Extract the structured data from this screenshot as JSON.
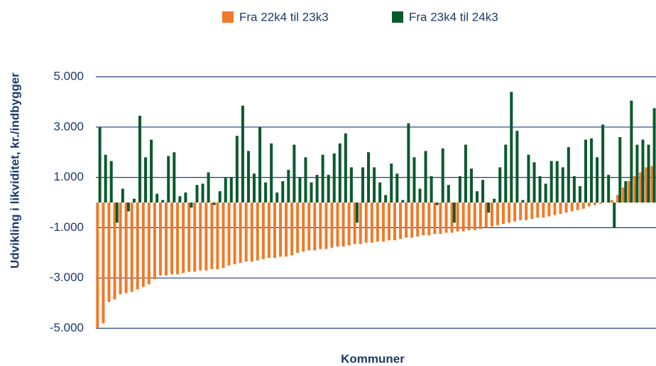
{
  "chart_data": {
    "type": "bar",
    "y_label": "Udvikling i likviditet, kr./indbygger",
    "x_label": "Kommuner",
    "categories": [
      null,
      null,
      null,
      null,
      null,
      null,
      null,
      null,
      null,
      null,
      null,
      null,
      null,
      null,
      null,
      null,
      null,
      null,
      null,
      null,
      null,
      null,
      null,
      null,
      null,
      null,
      null,
      null,
      null,
      null,
      null,
      null,
      null,
      null,
      null,
      null,
      null,
      null,
      null,
      null,
      null,
      null,
      null,
      null,
      null,
      null,
      null,
      null,
      null,
      null,
      null,
      null,
      null,
      null,
      null,
      null,
      null,
      null,
      null,
      null,
      null,
      null,
      null,
      null,
      null,
      null,
      null,
      null,
      null,
      null,
      null,
      null,
      null,
      null,
      null,
      null,
      null,
      null,
      null,
      null,
      null,
      null,
      null,
      null,
      null,
      null,
      null,
      null,
      null,
      null,
      null,
      null,
      null,
      null,
      null,
      null,
      null,
      null
    ],
    "series": [
      {
        "name": "Fra 22k4 til 23k3",
        "color": "#f07a2a",
        "values": [
          -5000,
          -4800,
          -3950,
          -3850,
          -3650,
          -3600,
          -3550,
          -3450,
          -3350,
          -3250,
          -3050,
          -2900,
          -2900,
          -2850,
          -2850,
          -2800,
          -2750,
          -2750,
          -2700,
          -2700,
          -2650,
          -2650,
          -2600,
          -2500,
          -2450,
          -2400,
          -2350,
          -2350,
          -2300,
          -2250,
          -2200,
          -2200,
          -2150,
          -2150,
          -2100,
          -2000,
          -1950,
          -1900,
          -1900,
          -1850,
          -1850,
          -1800,
          -1750,
          -1750,
          -1700,
          -1650,
          -1650,
          -1600,
          -1600,
          -1550,
          -1550,
          -1500,
          -1500,
          -1450,
          -1400,
          -1400,
          -1350,
          -1300,
          -1300,
          -1250,
          -1250,
          -1200,
          -1200,
          -1150,
          -1150,
          -1100,
          -1100,
          -1050,
          -1000,
          -950,
          -900,
          -850,
          -800,
          -750,
          -700,
          -700,
          -650,
          -600,
          -600,
          -550,
          -500,
          -450,
          -400,
          -350,
          -300,
          -250,
          -150,
          -100,
          -50,
          0,
          100,
          300,
          600,
          850,
          1050,
          1200,
          1400,
          1450
        ]
      },
      {
        "name": "Fra 23k4 til 24k3",
        "color": "#0b5a2e",
        "values": [
          3000,
          1900,
          1650,
          -800,
          550,
          -350,
          150,
          3450,
          1800,
          2500,
          350,
          100,
          1850,
          2000,
          250,
          400,
          -200,
          700,
          750,
          1200,
          -100,
          450,
          1000,
          1000,
          2650,
          3850,
          2050,
          1150,
          3000,
          800,
          2350,
          400,
          850,
          1300,
          2300,
          1000,
          1800,
          800,
          1100,
          1900,
          1100,
          1950,
          2350,
          2750,
          1400,
          -800,
          1400,
          2000,
          1400,
          800,
          300,
          1550,
          1150,
          100,
          3150,
          1800,
          550,
          2050,
          1050,
          -100,
          2150,
          700,
          -800,
          1050,
          2300,
          1350,
          450,
          900,
          -400,
          150,
          1400,
          2300,
          4400,
          2850,
          100,
          1900,
          1600,
          1050,
          750,
          1650,
          1650,
          1400,
          2200,
          1050,
          650,
          2500,
          2550,
          1800,
          3100,
          1100,
          -1000,
          2600,
          850,
          4050,
          2300,
          2500,
          2300,
          3750
        ]
      }
    ],
    "ylim": [
      -5000,
      5000
    ],
    "yticks": [
      {
        "value": -5000,
        "label": "-5.000"
      },
      {
        "value": -3000,
        "label": "-3.000"
      },
      {
        "value": -1000,
        "label": "-1.000"
      },
      {
        "value": 1000,
        "label": "1.000"
      },
      {
        "value": 3000,
        "label": "3.000"
      },
      {
        "value": 5000,
        "label": "5.000"
      }
    ],
    "grid": true
  }
}
